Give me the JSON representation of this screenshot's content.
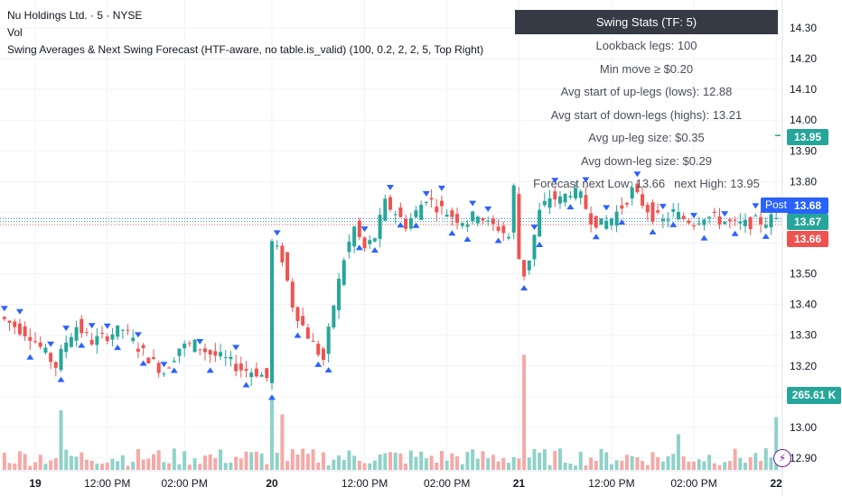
{
  "legend": {
    "symbol_line": "Nu Holdings Ltd. · 5 · NYSE",
    "vol_line": "Vol",
    "indicator_line": "Swing Averages & Next Swing Forecast (HTF-aware, no table.is_valid) (100, 0.2, 2, 2, 5, Top Right)"
  },
  "stats_table": {
    "title": "Swing Stats (TF: 5)",
    "rows": [
      "Lookback legs: 100",
      "Min move ≥ $0.20",
      "Avg start of up-legs (lows): 12.88",
      "Avg start of down-legs (highs): 13.21",
      "Avg up-leg size: $0.35",
      "Avg down-leg size: $0.29"
    ],
    "forecast_low": "Forecast next Low: 13.66",
    "forecast_high": "next High: 13.95"
  },
  "price_tags": {
    "high_forecast": {
      "label": "13.95",
      "value": 13.95,
      "color": "#26a69a"
    },
    "post": {
      "label": "13.68",
      "value": 13.68,
      "color": "#2962ff",
      "badge": "Post"
    },
    "last": {
      "label": "13.67",
      "value": 13.67,
      "color": "#26a69a"
    },
    "low_forecast": {
      "label": "13.66",
      "value": 13.66,
      "color": "#ef5350"
    }
  },
  "volume_tag": {
    "label": "265.61 K",
    "value": 265.61
  },
  "bolt_icon": "lightning-icon",
  "colors": {
    "up": "#26a69a",
    "down": "#ef5350",
    "up_volume": "#8fd2c8",
    "down_volume": "#f5a9a7",
    "swing_marker": "#2962ff",
    "grid": "#f0f3fa"
  },
  "chart_data": {
    "type": "candlestick",
    "y_axis": {
      "ticks": [
        14.3,
        14.2,
        14.1,
        14.0,
        13.9,
        13.8,
        13.7,
        13.6,
        13.5,
        13.4,
        13.3,
        13.2,
        13.1,
        13.0,
        12.9
      ],
      "tick_labels": [
        "14.30",
        "14.20",
        "14.10",
        "14.00",
        "13.90",
        "13.80",
        "13.70",
        "13.60",
        "13.50",
        "13.40",
        "13.30",
        "13.20",
        "13.10",
        "13.00",
        "12.90"
      ],
      "range": [
        12.88,
        14.34
      ]
    },
    "x_axis": {
      "tick_labels": [
        "19",
        "12:00 PM",
        "02:00 PM",
        "20",
        "12:00 PM",
        "02:00 PM",
        "21",
        "12:00 PM",
        "02:00 PM",
        "22"
      ],
      "tick_bar_index": [
        6,
        20,
        35,
        52,
        70,
        86,
        100,
        118,
        134,
        150
      ]
    },
    "price_path": [
      {
        "bar": 0,
        "price": 13.36
      },
      {
        "bar": 3,
        "price": 13.33
      },
      {
        "bar": 6,
        "price": 13.3
      },
      {
        "bar": 9,
        "price": 13.24
      },
      {
        "bar": 11,
        "price": 13.2
      },
      {
        "bar": 13,
        "price": 13.28
      },
      {
        "bar": 15,
        "price": 13.33
      },
      {
        "bar": 18,
        "price": 13.28
      },
      {
        "bar": 21,
        "price": 13.3
      },
      {
        "bar": 24,
        "price": 13.32
      },
      {
        "bar": 27,
        "price": 13.26
      },
      {
        "bar": 30,
        "price": 13.21
      },
      {
        "bar": 32,
        "price": 13.18
      },
      {
        "bar": 35,
        "price": 13.26
      },
      {
        "bar": 38,
        "price": 13.27
      },
      {
        "bar": 41,
        "price": 13.24
      },
      {
        "bar": 44,
        "price": 13.22
      },
      {
        "bar": 47,
        "price": 13.19
      },
      {
        "bar": 50,
        "price": 13.18
      },
      {
        "bar": 52,
        "price": 13.16
      },
      {
        "bar": 53,
        "price": 13.6
      },
      {
        "bar": 55,
        "price": 13.55
      },
      {
        "bar": 57,
        "price": 13.4
      },
      {
        "bar": 59,
        "price": 13.33
      },
      {
        "bar": 61,
        "price": 13.27
      },
      {
        "bar": 63,
        "price": 13.22
      },
      {
        "bar": 65,
        "price": 13.4
      },
      {
        "bar": 67,
        "price": 13.55
      },
      {
        "bar": 69,
        "price": 13.65
      },
      {
        "bar": 71,
        "price": 13.58
      },
      {
        "bar": 73,
        "price": 13.62
      },
      {
        "bar": 75,
        "price": 13.73
      },
      {
        "bar": 77,
        "price": 13.7
      },
      {
        "bar": 79,
        "price": 13.66
      },
      {
        "bar": 81,
        "price": 13.7
      },
      {
        "bar": 83,
        "price": 13.75
      },
      {
        "bar": 85,
        "price": 13.72
      },
      {
        "bar": 87,
        "price": 13.7
      },
      {
        "bar": 89,
        "price": 13.68
      },
      {
        "bar": 91,
        "price": 13.67
      },
      {
        "bar": 93,
        "price": 13.7
      },
      {
        "bar": 95,
        "price": 13.66
      },
      {
        "bar": 97,
        "price": 13.65
      },
      {
        "bar": 99,
        "price": 13.62
      },
      {
        "bar": 100,
        "price": 13.78
      },
      {
        "bar": 101,
        "price": 13.55
      },
      {
        "bar": 102,
        "price": 13.5
      },
      {
        "bar": 103,
        "price": 13.55
      },
      {
        "bar": 105,
        "price": 13.7
      },
      {
        "bar": 107,
        "price": 13.75
      },
      {
        "bar": 109,
        "price": 13.74
      },
      {
        "bar": 111,
        "price": 13.77
      },
      {
        "bar": 113,
        "price": 13.75
      },
      {
        "bar": 115,
        "price": 13.68
      },
      {
        "bar": 117,
        "price": 13.66
      },
      {
        "bar": 119,
        "price": 13.68
      },
      {
        "bar": 121,
        "price": 13.72
      },
      {
        "bar": 123,
        "price": 13.77
      },
      {
        "bar": 125,
        "price": 13.73
      },
      {
        "bar": 127,
        "price": 13.69
      },
      {
        "bar": 129,
        "price": 13.67
      },
      {
        "bar": 131,
        "price": 13.7
      },
      {
        "bar": 133,
        "price": 13.68
      },
      {
        "bar": 135,
        "price": 13.67
      },
      {
        "bar": 137,
        "price": 13.69
      },
      {
        "bar": 139,
        "price": 13.68
      },
      {
        "bar": 141,
        "price": 13.67
      },
      {
        "bar": 143,
        "price": 13.66
      },
      {
        "bar": 145,
        "price": 13.66
      },
      {
        "bar": 147,
        "price": 13.67
      },
      {
        "bar": 149,
        "price": 13.67
      },
      {
        "bar": 150,
        "price": 13.68
      }
    ],
    "bar_count": 151,
    "swing_highs": [
      0,
      3,
      9,
      12,
      17,
      20,
      26,
      31,
      38,
      45,
      53,
      70,
      75,
      82,
      85,
      91,
      94,
      103,
      107,
      113,
      117,
      123,
      128,
      134,
      140,
      146
    ],
    "swing_lows": [
      5,
      11,
      15,
      22,
      27,
      33,
      40,
      47,
      52,
      57,
      61,
      63,
      69,
      72,
      77,
      80,
      87,
      90,
      96,
      101,
      104,
      110,
      115,
      120,
      126,
      130,
      136,
      142,
      148
    ],
    "volume_spikes": [
      {
        "bar": 11,
        "value": 300
      },
      {
        "bar": 52,
        "value": 370
      },
      {
        "bar": 54,
        "value": 280
      },
      {
        "bar": 101,
        "value": 580
      },
      {
        "bar": 131,
        "value": 180
      },
      {
        "bar": 150,
        "value": 265.61
      }
    ],
    "horizontal_levels": [
      13.95,
      13.68,
      13.67,
      13.66
    ]
  }
}
